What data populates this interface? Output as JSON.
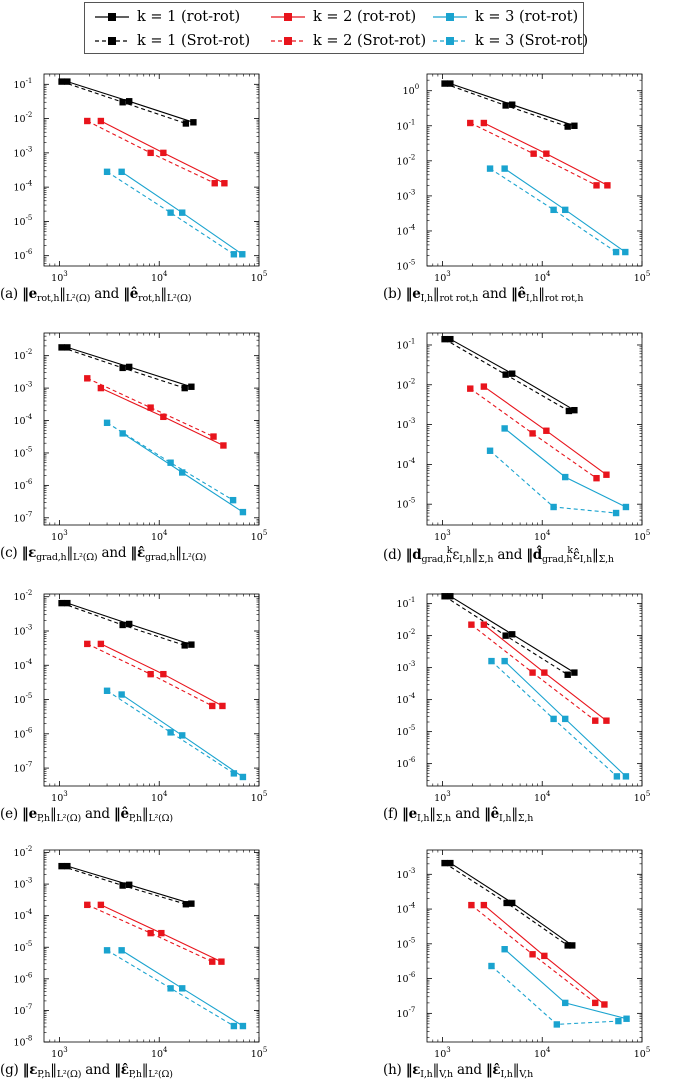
{
  "legend": [
    {
      "label": "k = 1 (rot-rot)",
      "series": 1,
      "style": "solid",
      "color": "#000000"
    },
    {
      "label": "k = 2 (rot-rot)",
      "series": 2,
      "style": "solid",
      "color": "#e8141c"
    },
    {
      "label": "k = 3 (rot-rot)",
      "series": 3,
      "style": "solid",
      "color": "#1aa3cf"
    },
    {
      "label": "k = 1 (Srot-rot)",
      "series": 1,
      "style": "dashed",
      "color": "#000000"
    },
    {
      "label": "k = 2 (Srot-rot)",
      "series": 2,
      "style": "dashed",
      "color": "#e8141c"
    },
    {
      "label": "k = 3 (Srot-rot)",
      "series": 3,
      "style": "dashed",
      "color": "#1aa3cf"
    }
  ],
  "chart_data": [
    {
      "type": "line",
      "xscale": "log",
      "yscale": "log",
      "xlim": [
        700,
        100000
      ],
      "ylim": [
        5e-07,
        0.2
      ],
      "xticks": [
        "10^3",
        "10^4",
        "10^5"
      ],
      "xtick_values": [
        1000,
        10000,
        100000
      ],
      "yticks": [
        "10^-6",
        "10^-5",
        "10^-4",
        "10^-3",
        "10^-2",
        "10^-1"
      ],
      "ytick_values": [
        1e-06,
        1e-05,
        0.0001,
        0.001,
        0.01,
        0.1
      ],
      "caption": {
        "pre": "(a) ",
        "t1": "‖e",
        "s1": "rot,h",
        "t2": "‖",
        "s2": "L²(Ω)",
        "mid": " and ",
        "t3": "‖ê",
        "s3": "rot,h",
        "t4": "‖",
        "s4": "L²(Ω)"
      },
      "series": [
        {
          "name": "k = 1 (rot-rot)",
          "x": [
            1200,
            5000,
            22000
          ],
          "y": [
            0.12,
            0.032,
            0.0078
          ]
        },
        {
          "name": "k = 1 (Srot-rot)",
          "x": [
            1050,
            4300,
            18500
          ],
          "y": [
            0.12,
            0.03,
            0.0072
          ]
        },
        {
          "name": "k = 2 (rot-rot)",
          "x": [
            2600,
            11000,
            45000
          ],
          "y": [
            0.0085,
            0.001,
            0.00013
          ]
        },
        {
          "name": "k = 2 (Srot-rot)",
          "x": [
            1900,
            8200,
            36000
          ],
          "y": [
            0.0085,
            0.001,
            0.00013
          ]
        },
        {
          "name": "k = 3 (rot-rot)",
          "x": [
            4200,
            17000,
            68000
          ],
          "y": [
            0.00028,
            1.8e-05,
            1.1e-06
          ]
        },
        {
          "name": "k = 3 (Srot-rot)",
          "x": [
            3000,
            13000,
            56000
          ],
          "y": [
            0.00028,
            1.8e-05,
            1.1e-06
          ]
        }
      ]
    },
    {
      "type": "line",
      "xscale": "log",
      "yscale": "log",
      "xlim": [
        700,
        100000
      ],
      "ylim": [
        1e-05,
        3
      ],
      "xticks": [
        "10^3",
        "10^4",
        "10^5"
      ],
      "xtick_values": [
        1000,
        10000,
        100000
      ],
      "yticks": [
        "10^-5",
        "10^-4",
        "10^-3",
        "10^-2",
        "10^-1",
        "10^0"
      ],
      "ytick_values": [
        1e-05,
        0.0001,
        0.001,
        0.01,
        0.1,
        1
      ],
      "caption": {
        "pre": "(b) ",
        "t1": "‖e",
        "s1": "I,h",
        "t2": "‖",
        "s2": "rot rot,h",
        "mid": " and ",
        "t3": "‖ê",
        "s3": "I,h",
        "t4": "‖",
        "s4": "rot rot,h"
      },
      "series": [
        {
          "name": "k = 1 (rot-rot)",
          "x": [
            1200,
            5000,
            21000
          ],
          "y": [
            1.6,
            0.4,
            0.1
          ]
        },
        {
          "name": "k = 1 (Srot-rot)",
          "x": [
            1050,
            4300,
            18000
          ],
          "y": [
            1.6,
            0.38,
            0.095
          ]
        },
        {
          "name": "k = 2 (rot-rot)",
          "x": [
            2600,
            11000,
            45000
          ],
          "y": [
            0.12,
            0.016,
            0.002
          ]
        },
        {
          "name": "k = 2 (Srot-rot)",
          "x": [
            1900,
            8200,
            35000
          ],
          "y": [
            0.12,
            0.016,
            0.002
          ]
        },
        {
          "name": "k = 3 (rot-rot)",
          "x": [
            4200,
            17000,
            68000
          ],
          "y": [
            0.006,
            0.0004,
            2.5e-05
          ]
        },
        {
          "name": "k = 3 (Srot-rot)",
          "x": [
            3000,
            13000,
            55000
          ],
          "y": [
            0.006,
            0.0004,
            2.5e-05
          ]
        }
      ]
    },
    {
      "type": "line",
      "xscale": "log",
      "yscale": "log",
      "xlim": [
        700,
        100000
      ],
      "ylim": [
        6e-08,
        0.05
      ],
      "xticks": [
        "10^3",
        "10^4",
        "10^5"
      ],
      "xtick_values": [
        1000,
        10000,
        100000
      ],
      "yticks": [
        "10^-7",
        "10^-6",
        "10^-5",
        "10^-4",
        "10^-3",
        "10^-2"
      ],
      "ytick_values": [
        1e-07,
        1e-06,
        1e-05,
        0.0001,
        0.001,
        0.01
      ],
      "caption": {
        "pre": "(c) ",
        "t1": "‖ε",
        "s1": "grad,h",
        "t2": "‖",
        "s2": "L²(Ω)",
        "mid": " and ",
        "t3": "‖ε̂",
        "s3": "grad,h",
        "t4": "‖",
        "s4": "L²(Ω)"
      },
      "series": [
        {
          "name": "k = 1 (rot-rot)",
          "x": [
            1200,
            5000,
            21000
          ],
          "y": [
            0.018,
            0.0045,
            0.0011
          ]
        },
        {
          "name": "k = 1 (Srot-rot)",
          "x": [
            1050,
            4300,
            18000
          ],
          "y": [
            0.018,
            0.0042,
            0.001
          ]
        },
        {
          "name": "k = 2 (rot-rot)",
          "x": [
            2600,
            11000,
            44000
          ],
          "y": [
            0.001,
            0.00013,
            1.7e-05
          ]
        },
        {
          "name": "k = 2 (Srot-rot)",
          "x": [
            1900,
            8200,
            35000
          ],
          "y": [
            0.002,
            0.00025,
            3.2e-05
          ]
        },
        {
          "name": "k = 3 (rot-rot)",
          "x": [
            4300,
            17000,
            69000
          ],
          "y": [
            4e-05,
            2.5e-06,
            1.5e-07
          ]
        },
        {
          "name": "k = 3 (Srot-rot)",
          "x": [
            3000,
            13000,
            55000
          ],
          "y": [
            8.5e-05,
            5e-06,
            3.5e-07
          ]
        }
      ]
    },
    {
      "type": "line",
      "xscale": "log",
      "yscale": "log",
      "xlim": [
        700,
        100000
      ],
      "ylim": [
        3e-06,
        0.2
      ],
      "xticks": [
        "10^3",
        "10^4",
        "10^5"
      ],
      "xtick_values": [
        1000,
        10000,
        100000
      ],
      "yticks": [
        "10^-5",
        "10^-4",
        "10^-3",
        "10^-2",
        "10^-1"
      ],
      "ytick_values": [
        1e-05,
        0.0001,
        0.001,
        0.01,
        0.1
      ],
      "caption": {
        "pre": "(d) ",
        "t1": "‖d",
        "s1": "grad,h",
        "sup1": "k",
        "t2": "ε",
        "s2": "I,h",
        "t2b": "‖",
        "s2b": "Σ,h",
        "mid": " and ",
        "t3": "‖d̂",
        "s3": "grad,h",
        "sup3": "k",
        "t4": "ε̂",
        "s4": "I,h",
        "t4b": "‖",
        "s4b": "Σ,h"
      },
      "series": [
        {
          "name": "k = 1 (rot-rot)",
          "x": [
            1200,
            5000,
            21000
          ],
          "y": [
            0.14,
            0.019,
            0.0023
          ]
        },
        {
          "name": "k = 1 (Srot-rot)",
          "x": [
            1050,
            4300,
            18500
          ],
          "y": [
            0.14,
            0.018,
            0.0022
          ]
        },
        {
          "name": "k = 2 (rot-rot)",
          "x": [
            2600,
            11000,
            44000
          ],
          "y": [
            0.009,
            0.0007,
            5.5e-05
          ]
        },
        {
          "name": "k = 2 (Srot-rot)",
          "x": [
            1900,
            8000,
            35000
          ],
          "y": [
            0.008,
            0.0006,
            4.5e-05
          ]
        },
        {
          "name": "k = 3 (rot-rot)",
          "x": [
            4200,
            17000,
            69000
          ],
          "y": [
            0.0008,
            4.8e-05,
            8.5e-06
          ]
        },
        {
          "name": "k = 3 (Srot-rot)",
          "x": [
            3000,
            13000,
            55000
          ],
          "y": [
            0.00022,
            8.5e-06,
            6e-06
          ]
        }
      ]
    },
    {
      "type": "line",
      "xscale": "log",
      "yscale": "log",
      "xlim": [
        700,
        100000
      ],
      "ylim": [
        3e-08,
        0.012
      ],
      "xticks": [
        "10^3",
        "10^4",
        "10^5"
      ],
      "xtick_values": [
        1000,
        10000,
        100000
      ],
      "yticks": [
        "10^-7",
        "10^-6",
        "10^-5",
        "10^-4",
        "10^-3",
        "10^-2"
      ],
      "ytick_values": [
        1e-07,
        1e-06,
        1e-05,
        0.0001,
        0.001,
        0.01
      ],
      "caption": {
        "pre": "(e) ",
        "t1": "‖e",
        "s1": "P,h",
        "t2": "‖",
        "s2": "L²(Ω)",
        "mid": " and ",
        "t3": "‖ê",
        "s3": "P,h",
        "t4": "‖",
        "s4": "L²(Ω)"
      },
      "series": [
        {
          "name": "k = 1 (rot-rot)",
          "x": [
            1200,
            5000,
            21000
          ],
          "y": [
            0.0065,
            0.0016,
            0.0004
          ]
        },
        {
          "name": "k = 1 (Srot-rot)",
          "x": [
            1050,
            4300,
            18000
          ],
          "y": [
            0.0065,
            0.0015,
            0.00038
          ]
        },
        {
          "name": "k = 2 (rot-rot)",
          "x": [
            2600,
            11000,
            43000
          ],
          "y": [
            0.00042,
            5.5e-05,
            6.5e-06
          ]
        },
        {
          "name": "k = 2 (Srot-rot)",
          "x": [
            1900,
            8200,
            34000
          ],
          "y": [
            0.00042,
            5.5e-05,
            6.5e-06
          ]
        },
        {
          "name": "k = 3 (rot-rot)",
          "x": [
            4200,
            17000,
            69000
          ],
          "y": [
            1.4e-05,
            9e-07,
            5.5e-08
          ]
        },
        {
          "name": "k = 3 (Srot-rot)",
          "x": [
            3000,
            13000,
            56000
          ],
          "y": [
            1.8e-05,
            1.1e-06,
            7e-08
          ]
        }
      ]
    },
    {
      "type": "line",
      "xscale": "log",
      "yscale": "log",
      "xlim": [
        700,
        100000
      ],
      "ylim": [
        2e-07,
        0.2
      ],
      "xticks": [
        "10^3",
        "10^4",
        "10^5"
      ],
      "xtick_values": [
        1000,
        10000,
        100000
      ],
      "yticks": [
        "10^-6",
        "10^-5",
        "10^-4",
        "10^-3",
        "10^-2",
        "10^-1"
      ],
      "ytick_values": [
        1e-06,
        1e-05,
        0.0001,
        0.001,
        0.01,
        0.1
      ],
      "caption": {
        "pre": "(f) ",
        "t1": "‖e",
        "s1": "I,h",
        "t2": "‖",
        "s2": "Σ,h",
        "mid": " and ",
        "t3": "‖ê",
        "s3": "I,h",
        "t4": "‖",
        "s4": "Σ,h"
      },
      "series": [
        {
          "name": "k = 1 (rot-rot)",
          "x": [
            1200,
            5000,
            21000
          ],
          "y": [
            0.17,
            0.011,
            0.0007
          ]
        },
        {
          "name": "k = 1 (Srot-rot)",
          "x": [
            1050,
            4300,
            18000
          ],
          "y": [
            0.17,
            0.01,
            0.0006
          ]
        },
        {
          "name": "k = 2 (rot-rot)",
          "x": [
            2600,
            10500,
            44000
          ],
          "y": [
            0.022,
            0.0007,
            2.2e-05
          ]
        },
        {
          "name": "k = 2 (Srot-rot)",
          "x": [
            1950,
            8000,
            34000
          ],
          "y": [
            0.022,
            0.0007,
            2.2e-05
          ]
        },
        {
          "name": "k = 3 (rot-rot)",
          "x": [
            4200,
            17000,
            69000
          ],
          "y": [
            0.0016,
            2.5e-05,
            4e-07
          ]
        },
        {
          "name": "k = 3 (Srot-rot)",
          "x": [
            3100,
            13000,
            56000
          ],
          "y": [
            0.0016,
            2.5e-05,
            4e-07
          ]
        }
      ]
    },
    {
      "type": "line",
      "xscale": "log",
      "yscale": "log",
      "xlim": [
        700,
        100000
      ],
      "ylim": [
        1e-08,
        0.012
      ],
      "xticks": [
        "10^3",
        "10^4",
        "10^5"
      ],
      "xtick_values": [
        1000,
        10000,
        100000
      ],
      "yticks": [
        "10^-8",
        "10^-7",
        "10^-6",
        "10^-5",
        "10^-4",
        "10^-3",
        "10^-2"
      ],
      "ytick_values": [
        1e-08,
        1e-07,
        1e-06,
        1e-05,
        0.0001,
        0.001,
        0.01
      ],
      "caption": {
        "pre": "(g) ",
        "t1": "‖ε",
        "s1": "P,h",
        "t2": "‖",
        "s2": "L²(Ω)",
        "mid": " and ",
        "t3": "‖ε̂",
        "s3": "P,h",
        "t4": "‖",
        "s4": "L²(Ω)"
      },
      "series": [
        {
          "name": "k = 1 (rot-rot)",
          "x": [
            1200,
            5000,
            21000
          ],
          "y": [
            0.0037,
            0.00095,
            0.00024
          ]
        },
        {
          "name": "k = 1 (Srot-rot)",
          "x": [
            1050,
            4300,
            18500
          ],
          "y": [
            0.0037,
            0.0009,
            0.00023
          ]
        },
        {
          "name": "k = 2 (rot-rot)",
          "x": [
            2600,
            10500,
            42000
          ],
          "y": [
            0.00022,
            2.8e-05,
            3.5e-06
          ]
        },
        {
          "name": "k = 2 (Srot-rot)",
          "x": [
            1900,
            8200,
            34000
          ],
          "y": [
            0.00022,
            2.8e-05,
            3.5e-06
          ]
        },
        {
          "name": "k = 3 (rot-rot)",
          "x": [
            4200,
            17000,
            69000
          ],
          "y": [
            8e-06,
            5e-07,
            3.2e-08
          ]
        },
        {
          "name": "k = 3 (Srot-rot)",
          "x": [
            3000,
            13000,
            56000
          ],
          "y": [
            8e-06,
            5e-07,
            3.2e-08
          ]
        }
      ]
    },
    {
      "type": "line",
      "xscale": "log",
      "yscale": "log",
      "xlim": [
        700,
        100000
      ],
      "ylim": [
        1.5e-08,
        0.005
      ],
      "xticks": [
        "10^3",
        "10^4",
        "10^5"
      ],
      "xtick_values": [
        1000,
        10000,
        100000
      ],
      "yticks": [
        "10^-7",
        "10^-6",
        "10^-5",
        "10^-4",
        "10^-3"
      ],
      "ytick_values": [
        1e-07,
        1e-06,
        1e-05,
        0.0001,
        0.001
      ],
      "caption": {
        "pre": "(h) ",
        "t1": "‖ε",
        "s1": "I,h",
        "t2": "‖",
        "s2": "V,h",
        "mid": " and ",
        "t3": "‖ε̂",
        "s3": "I,h",
        "t4": "‖",
        "s4": "V,h"
      },
      "series": [
        {
          "name": "k = 1 (rot-rot)",
          "x": [
            1200,
            5000,
            20000
          ],
          "y": [
            0.0021,
            0.00015,
            9e-06
          ]
        },
        {
          "name": "k = 1 (Srot-rot)",
          "x": [
            1050,
            4400,
            18000
          ],
          "y": [
            0.0021,
            0.00015,
            9e-06
          ]
        },
        {
          "name": "k = 2 (rot-rot)",
          "x": [
            2600,
            10500,
            42000
          ],
          "y": [
            0.00013,
            4.5e-06,
            1.8e-07
          ]
        },
        {
          "name": "k = 2 (Srot-rot)",
          "x": [
            1950,
            8000,
            34000
          ],
          "y": [
            0.00013,
            5e-06,
            2e-07
          ]
        },
        {
          "name": "k = 3 (rot-rot)",
          "x": [
            4200,
            17000,
            70000
          ],
          "y": [
            7e-06,
            2e-07,
            7e-08
          ]
        },
        {
          "name": "k = 3 (Srot-rot)",
          "x": [
            3100,
            14000,
            58000
          ],
          "y": [
            2.3e-06,
            4.8e-08,
            6e-08
          ]
        }
      ]
    }
  ]
}
